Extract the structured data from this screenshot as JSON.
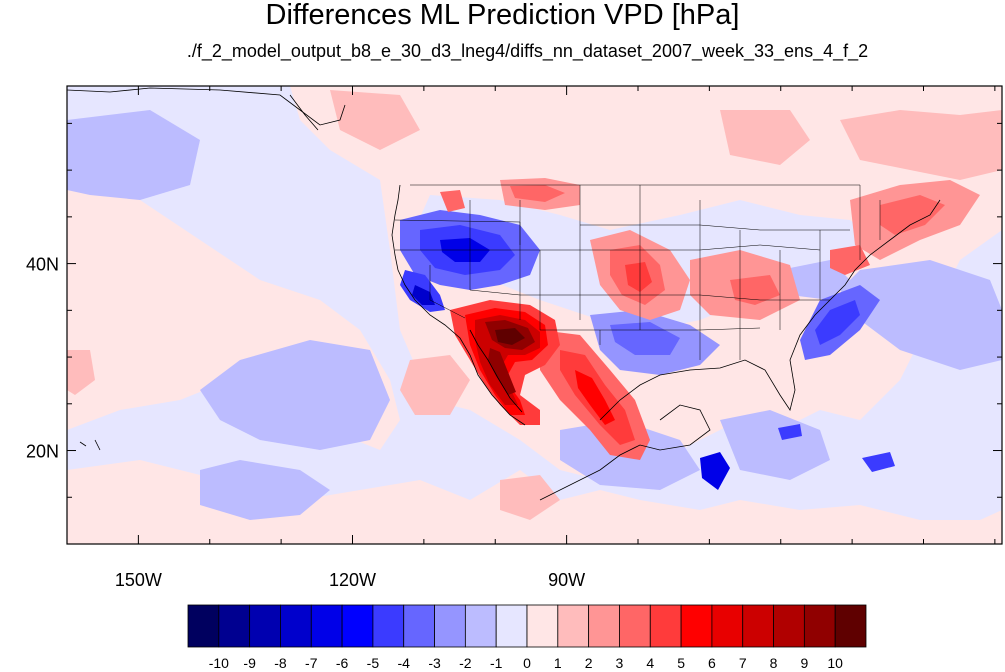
{
  "title": "Differences ML Prediction VPD [hPa]",
  "subtitle": "./f_2_model_output_b8_e_30_d3_lneg4/diffs_nn_dataset_2007_week_33_ens_4_f_2",
  "map": {
    "projection": "cylindrical-equidistant",
    "lon_range": [
      -160,
      -29
    ],
    "lat_range": [
      10,
      59
    ],
    "x_ticks": [
      {
        "value": -150,
        "label": "150W"
      },
      {
        "value": -120,
        "label": "120W"
      },
      {
        "value": -90,
        "label": "90W"
      }
    ],
    "y_ticks": [
      {
        "value": 40,
        "label": "40N"
      },
      {
        "value": 20,
        "label": "20N"
      }
    ],
    "field": "VPD difference",
    "features": [
      "strong positive anomaly over Gulf of California, Baja California and Arizona",
      "positive anomaly over northern and eastern Mexico",
      "negative anomaly over Great Basin, Idaho, Oregon and Nevada",
      "negative anomaly over Texas and Gulf coast",
      "positive anomaly over central plains and Ohio valley",
      "negative anomaly off the southeast US coast",
      "positive anomaly over New England and the North Atlantic"
    ]
  },
  "colorbar": {
    "levels": [
      "-10",
      "-9",
      "-8",
      "-7",
      "-6",
      "-5",
      "-4",
      "-3",
      "-2",
      "-1",
      "0",
      "1",
      "2",
      "3",
      "4",
      "5",
      "6",
      "7",
      "8",
      "9",
      "10"
    ],
    "colors": [
      "#00005f",
      "#000090",
      "#0000b0",
      "#0000cc",
      "#0000e8",
      "#0000ff",
      "#3b3bff",
      "#6666ff",
      "#9595ff",
      "#bcbcff",
      "#e6e6ff",
      "#ffe6e6",
      "#ffbcbc",
      "#ff9595",
      "#ff6666",
      "#ff3b3b",
      "#ff0000",
      "#e80000",
      "#cc0000",
      "#b00000",
      "#900000",
      "#5f0000"
    ]
  }
}
